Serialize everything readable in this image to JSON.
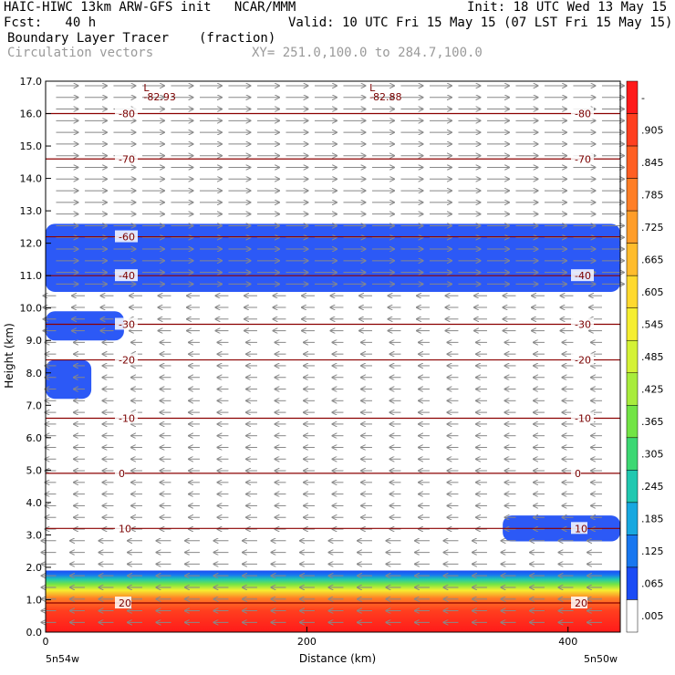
{
  "header": {
    "line1_left": "HAIC-HIWC 13km ARW-GFS init   NCAR/MMM",
    "line1_right": "Init: 18 UTC Wed 13 May 15",
    "line2_left": "Fcst:   40 h",
    "line2_right": "Valid: 10 UTC Fri 15 May 15 (07 LST Fri 15 May 15)",
    "line3_left": "Boundary Layer Tracer",
    "line3_mid": "(fraction)",
    "line4_left": "Circulation vectors",
    "line4_mid": "XY= 251.0,100.0 to 284.7,100.0"
  },
  "chart_data": {
    "type": "heatmap",
    "xlabel": "Distance (km)",
    "ylabel": "Height (km)",
    "xlim": [
      0,
      440
    ],
    "ylim": [
      0,
      17
    ],
    "x_ticks": [
      "0",
      "200",
      "400"
    ],
    "x_end_labels": [
      "5n54w",
      "5n50w"
    ],
    "y_ticks": [
      "0.0",
      "1.0",
      "2.0",
      "3.0",
      "4.0",
      "5.0",
      "6.0",
      "7.0",
      "8.0",
      "9.0",
      "10.0",
      "11.0",
      "12.0",
      "13.0",
      "14.0",
      "15.0",
      "16.0",
      "17.0"
    ],
    "colorbar": {
      "labels": [
        "-",
        ".905",
        ".845",
        ".785",
        ".725",
        ".665",
        ".605",
        ".545",
        ".485",
        ".425",
        ".365",
        ".305",
        ".245",
        ".185",
        ".125",
        ".065",
        ".005"
      ],
      "colors": [
        "#ff1a1a",
        "#ff3f1f",
        "#ff5f23",
        "#ff7e26",
        "#ff9d29",
        "#ffbc2c",
        "#ffd92e",
        "#f5ee30",
        "#d4f236",
        "#a8ec3c",
        "#72e445",
        "#3cd873",
        "#20c8b0",
        "#18a8e0",
        "#1877f0",
        "#1a4bf5",
        "#ffffff"
      ]
    },
    "temperature_isotherms": [
      {
        "value": -80,
        "height_km": 16.0,
        "labels": [
          "-80",
          "-80"
        ]
      },
      {
        "value": -70,
        "height_km": 14.6,
        "labels": [
          "-70",
          "-70"
        ]
      },
      {
        "value": -60,
        "height_km": 12.2,
        "labels": [
          "-60"
        ]
      },
      {
        "value": -40,
        "height_km": 11.0,
        "labels": [
          "-40",
          "-40"
        ]
      },
      {
        "value": -30,
        "height_km": 9.5,
        "labels": [
          "-30",
          "-30"
        ]
      },
      {
        "value": -20,
        "height_km": 8.4,
        "labels": [
          "-20",
          "-20"
        ]
      },
      {
        "value": -10,
        "height_km": 6.6,
        "labels": [
          "-10",
          "-10"
        ]
      },
      {
        "value": 0,
        "height_km": 4.9,
        "labels": [
          "0",
          "0"
        ]
      },
      {
        "value": 10,
        "height_km": 3.2,
        "labels": [
          "10",
          "10"
        ]
      },
      {
        "value": 20,
        "height_km": 0.9,
        "labels": [
          "20",
          "20"
        ]
      }
    ],
    "low_markers": [
      {
        "x_km": 75,
        "letter": "L",
        "value": "-82.93"
      },
      {
        "x_km": 248,
        "letter": "L",
        "value": "-82.88"
      }
    ],
    "tracer_regions": [
      {
        "name": "upper-layer",
        "fraction": 0.065,
        "x_range": [
          0,
          440
        ],
        "height_km": [
          10.5,
          12.6
        ]
      },
      {
        "name": "mid-blob-1",
        "fraction": 0.065,
        "x_range": [
          0,
          60
        ],
        "height_km": [
          9.0,
          9.9
        ]
      },
      {
        "name": "mid-blob-2",
        "fraction": 0.065,
        "x_range": [
          0,
          35
        ],
        "height_km": [
          7.2,
          8.4
        ]
      },
      {
        "name": "right-blob",
        "fraction": 0.065,
        "x_range": [
          350,
          440
        ],
        "height_km": [
          2.8,
          3.6
        ]
      },
      {
        "name": "boundary-layer",
        "fraction": 0.965,
        "x_range": [
          0,
          440
        ],
        "height_km": [
          0,
          1.9
        ]
      }
    ]
  }
}
